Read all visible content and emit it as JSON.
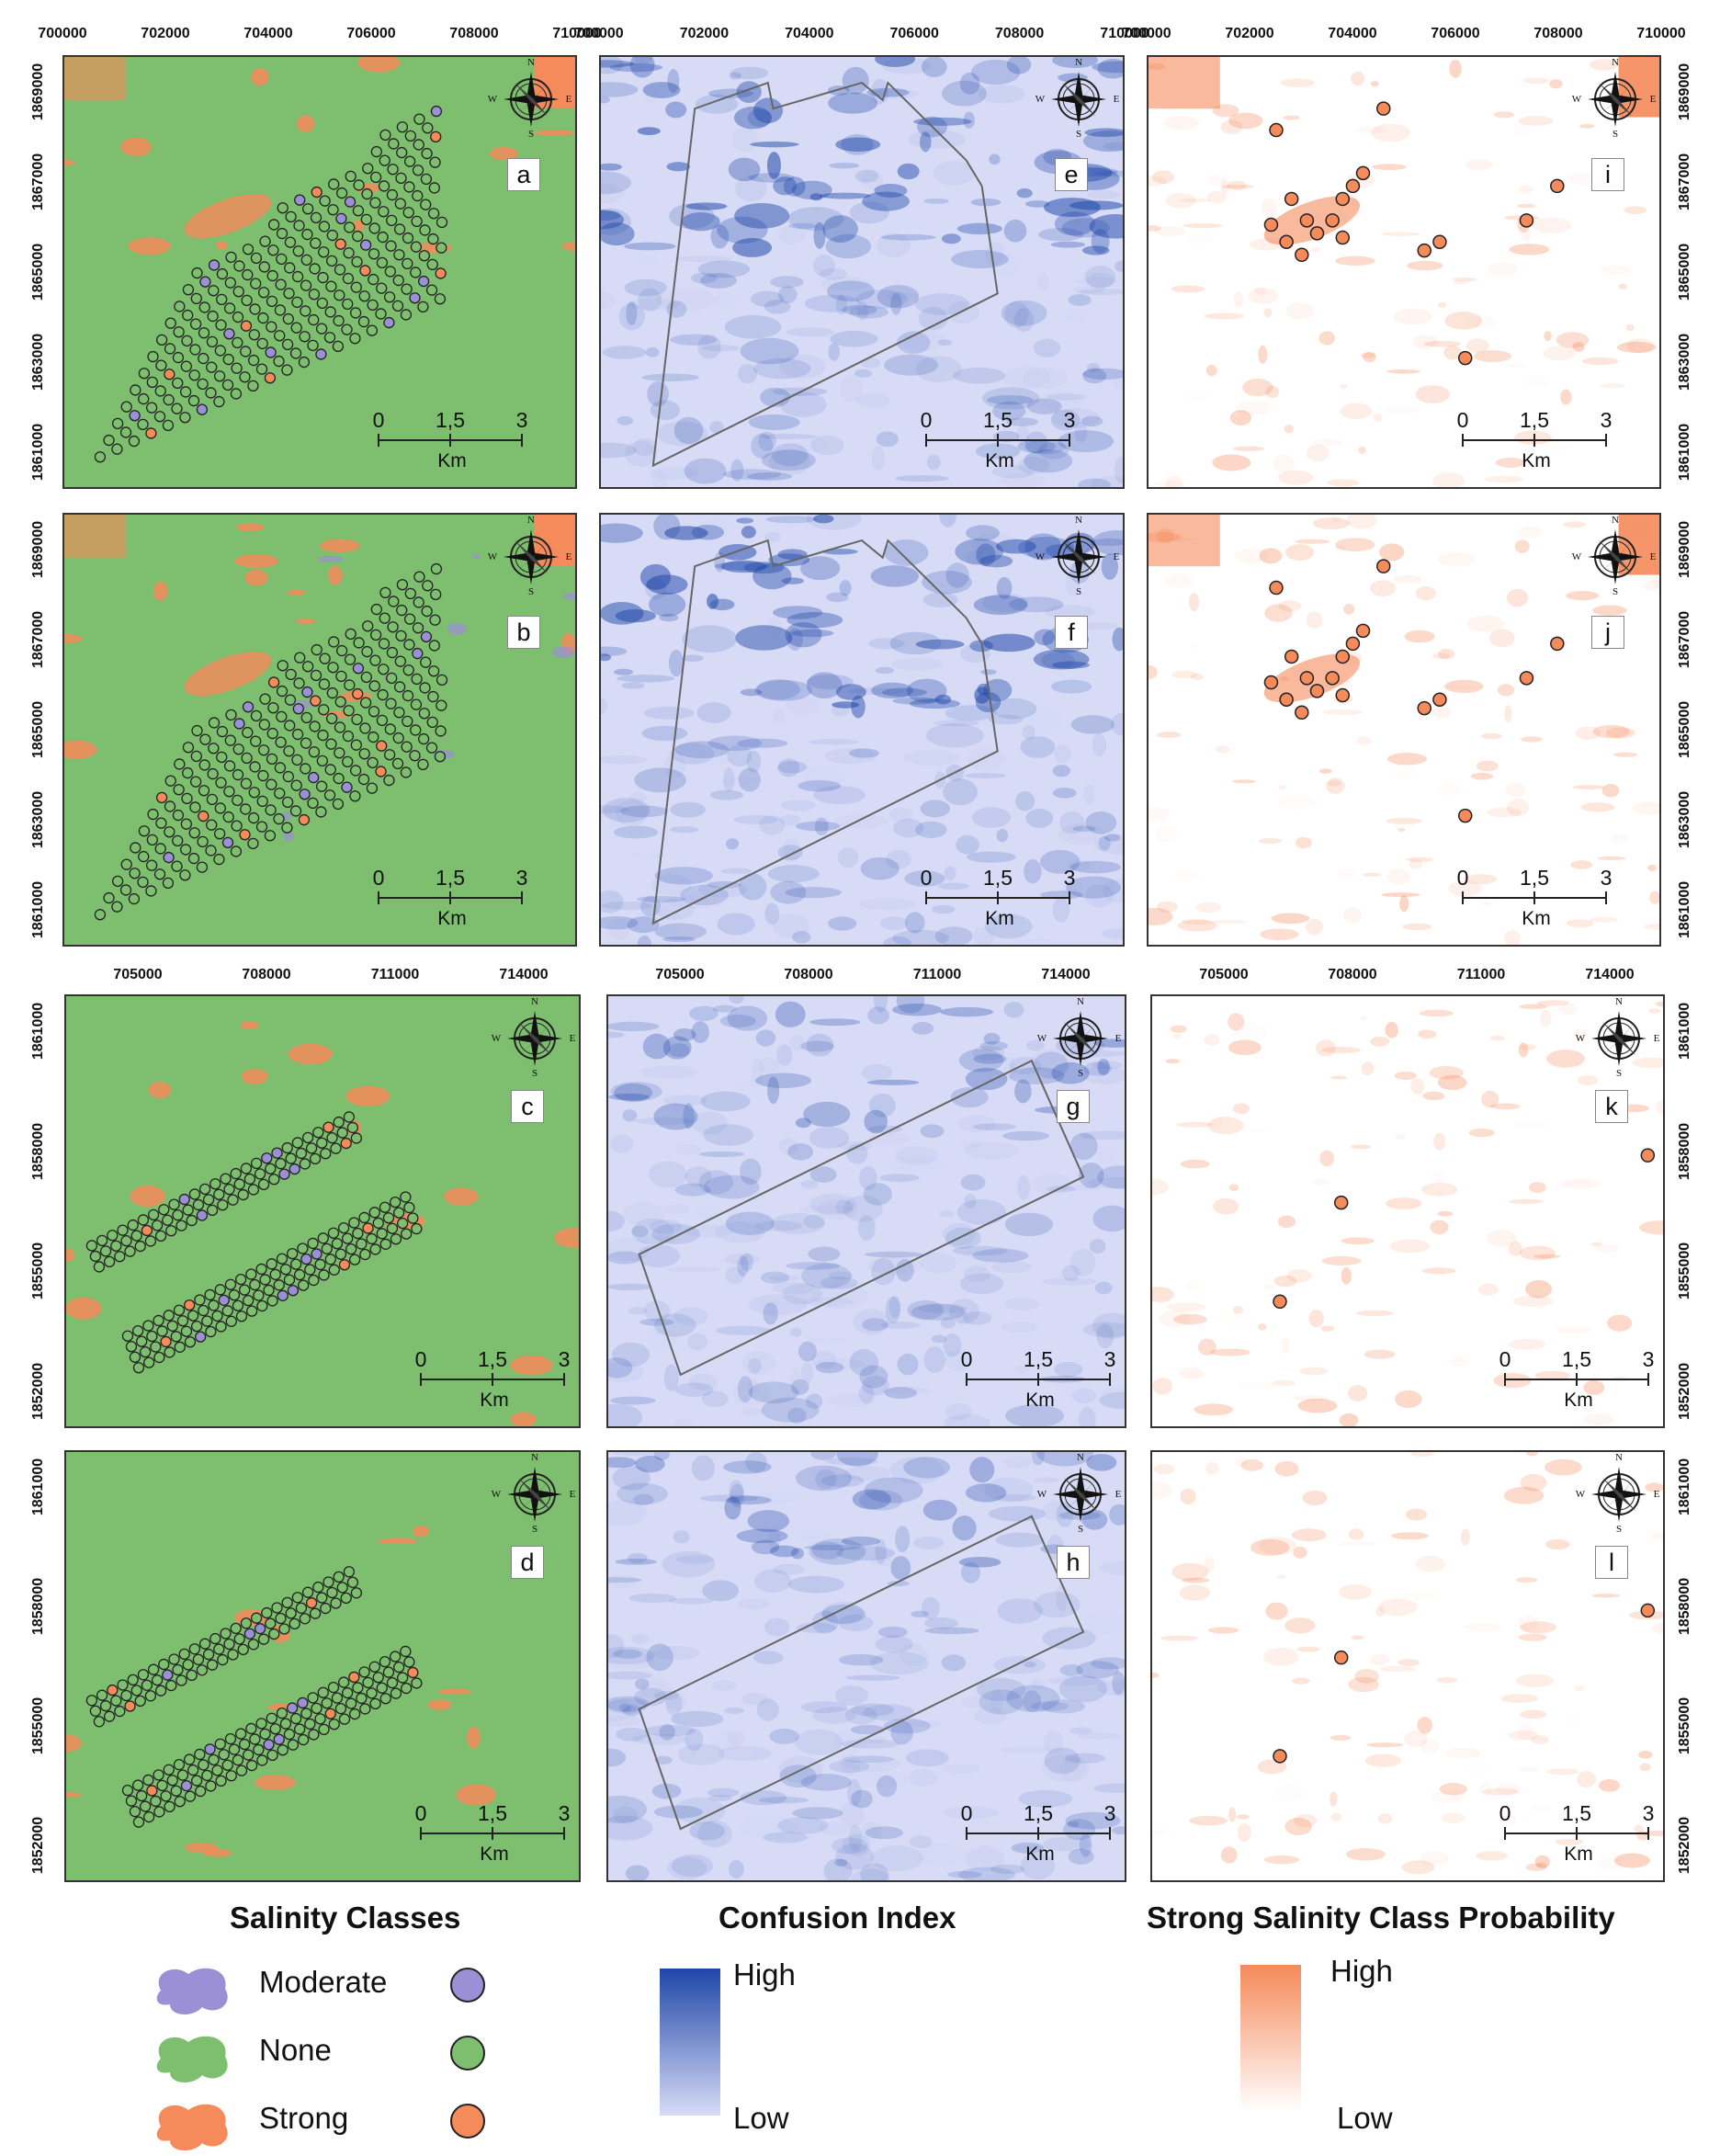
{
  "colors": {
    "none": "#7dbf6f",
    "moderate": "#9b8fd6",
    "strong": "#f58a5a",
    "confusion_high": "#1f47a8",
    "confusion_low": "#d7dbf6",
    "prob_high": "#f58a5a",
    "prob_low": "#ffffff"
  },
  "axes": {
    "top_x_ticks": [
      "700000",
      "702000",
      "704000",
      "706000",
      "708000",
      "710000"
    ],
    "top_y_ticks": [
      "1869000",
      "1867000",
      "1865000",
      "1863000",
      "1861000"
    ],
    "bottom_x_ticks": [
      "705000",
      "708000",
      "711000",
      "714000"
    ],
    "bottom_y_ticks": [
      "1861000",
      "1858000",
      "1855000",
      "1852000"
    ]
  },
  "panels": {
    "row1": [
      {
        "id": "a",
        "type": "classes",
        "label": "a"
      },
      {
        "id": "e",
        "type": "confusion",
        "label": "e"
      },
      {
        "id": "i",
        "type": "probability",
        "label": "i"
      }
    ],
    "row2": [
      {
        "id": "b",
        "type": "classes",
        "label": "b"
      },
      {
        "id": "f",
        "type": "confusion",
        "label": "f"
      },
      {
        "id": "j",
        "type": "probability",
        "label": "j"
      }
    ],
    "row3": [
      {
        "id": "c",
        "type": "classes",
        "label": "c"
      },
      {
        "id": "g",
        "type": "confusion",
        "label": "g"
      },
      {
        "id": "k",
        "type": "probability",
        "label": "k"
      }
    ],
    "row4": [
      {
        "id": "d",
        "type": "classes",
        "label": "d"
      },
      {
        "id": "h",
        "type": "confusion",
        "label": "h"
      },
      {
        "id": "l",
        "type": "probability",
        "label": "l"
      }
    ]
  },
  "compass": {
    "n": "N",
    "s": "S",
    "e": "E",
    "w": "W"
  },
  "scalebar": {
    "ticks": [
      "0",
      "1,5",
      "3"
    ],
    "unit": "Km"
  },
  "legend": {
    "salinity_title": "Salinity Classes",
    "classes": [
      "Moderate",
      "None",
      "Strong"
    ],
    "confusion_title": "Confusion Index",
    "probability_title": "Strong Salinity Class Probability",
    "high": "High",
    "low": "Low"
  }
}
